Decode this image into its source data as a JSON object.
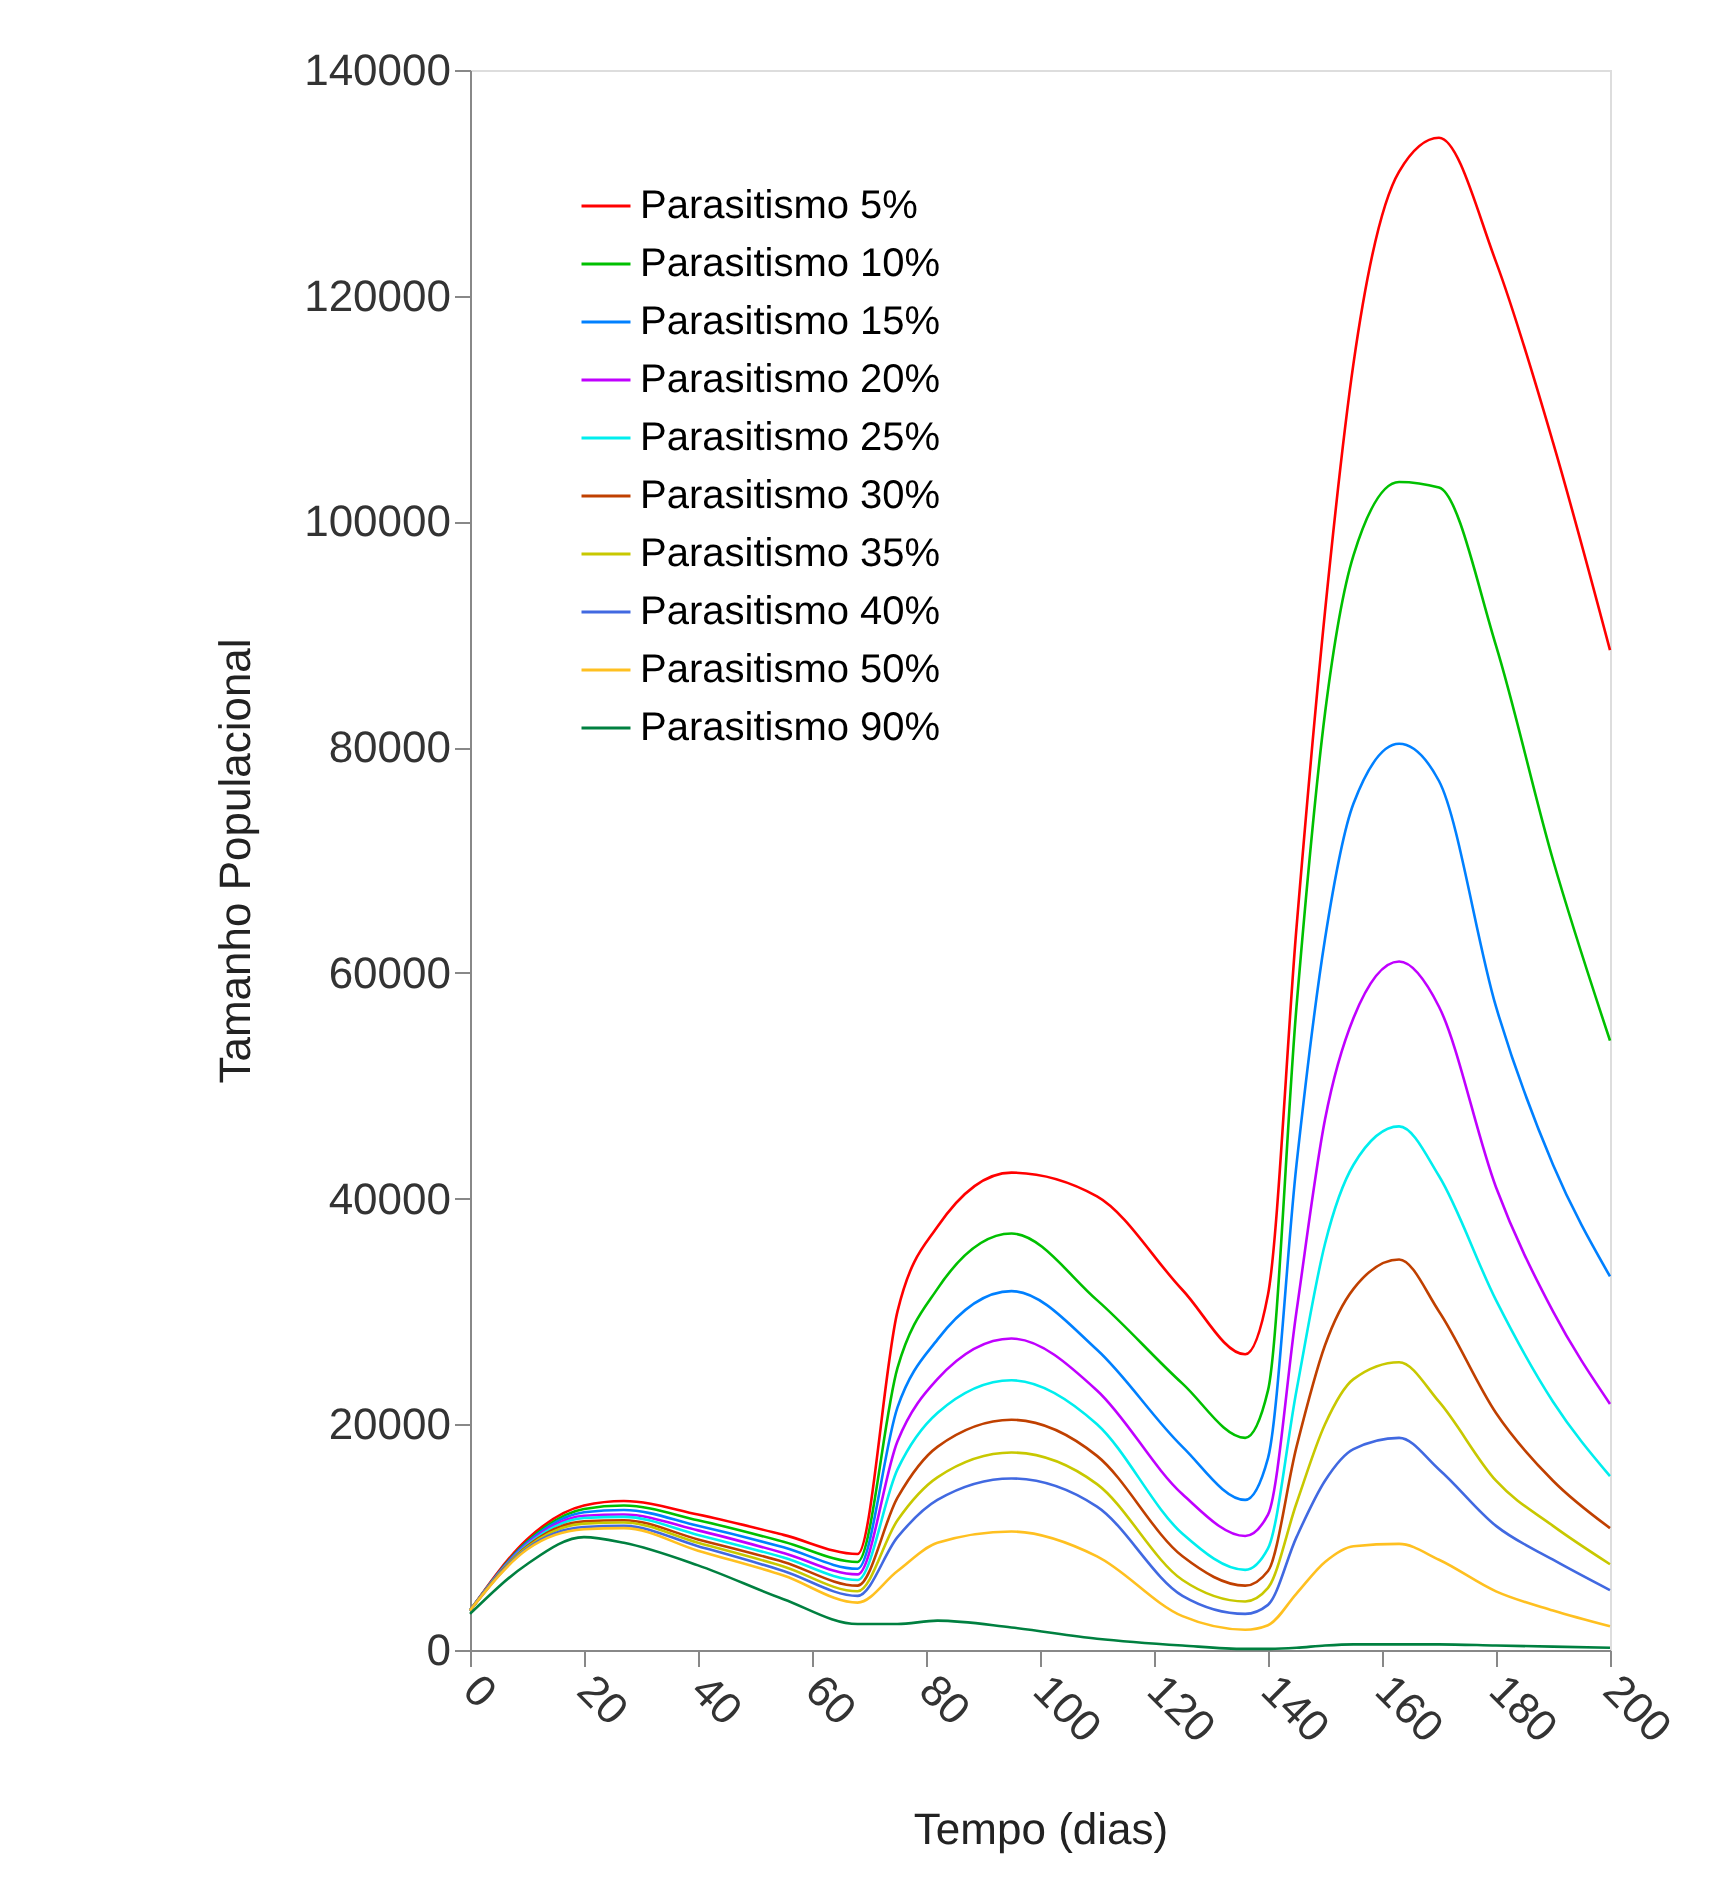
{
  "chart_data": {
    "type": "line",
    "xlabel": "Tempo (dias)",
    "ylabel": "Tamanho Populacional",
    "x": [
      0,
      10,
      20,
      27,
      40,
      55,
      68,
      75,
      82,
      95,
      110,
      125,
      136,
      140,
      145,
      150,
      155,
      163,
      170,
      180,
      190,
      200
    ],
    "xlim": [
      0,
      200
    ],
    "xticks": [
      0,
      20,
      40,
      60,
      80,
      100,
      120,
      140,
      160,
      180,
      200
    ],
    "ylim": [
      0,
      140000
    ],
    "yticks": [
      0,
      20000,
      40000,
      60000,
      80000,
      100000,
      120000,
      140000
    ],
    "grid": false,
    "legend": "top left",
    "line_style": "solid",
    "marker": "none",
    "series": [
      {
        "name": "Parasitismo 5%",
        "color": "#ff0000",
        "values": [
          3500,
          9800,
          12800,
          13200,
          12000,
          10200,
          8500,
          30000,
          37500,
          42300,
          40200,
          31900,
          26200,
          31500,
          64000,
          92000,
          114000,
          131000,
          134000,
          123000,
          107000,
          88600
        ]
      },
      {
        "name": "Parasitismo 10%",
        "color": "#00c000",
        "values": [
          3500,
          9600,
          12500,
          12800,
          11500,
          9600,
          7800,
          25000,
          32000,
          36900,
          31000,
          23600,
          18800,
          23000,
          57000,
          83000,
          97000,
          103500,
          103000,
          89000,
          70000,
          54000
        ]
      },
      {
        "name": "Parasitismo 15%",
        "color": "#0080ff",
        "values": [
          3500,
          9500,
          12200,
          12400,
          11000,
          9100,
          7200,
          21500,
          27500,
          31800,
          26600,
          18000,
          13300,
          17000,
          43000,
          63000,
          75000,
          80300,
          77000,
          57000,
          43000,
          33100
        ]
      },
      {
        "name": "Parasitismo 20%",
        "color": "#c000ff",
        "values": [
          3500,
          9400,
          11900,
          12000,
          10600,
          8600,
          6700,
          18500,
          24000,
          27600,
          23000,
          13800,
          10100,
          12000,
          30000,
          47000,
          56000,
          61000,
          57000,
          41000,
          30000,
          21800
        ]
      },
      {
        "name": "Parasitismo 25%",
        "color": "#00eeee",
        "values": [
          3500,
          9300,
          11700,
          11800,
          10200,
          8200,
          6200,
          16000,
          21000,
          23900,
          20000,
          10300,
          7100,
          9000,
          23000,
          36000,
          43000,
          46400,
          42000,
          31000,
          22000,
          15400
        ]
      },
      {
        "name": "Parasitismo 30%",
        "color": "#c04000",
        "values": [
          3500,
          9200,
          11400,
          11500,
          9800,
          7800,
          5700,
          13500,
          18000,
          20400,
          17200,
          8300,
          5700,
          7000,
          18000,
          27000,
          32000,
          34600,
          30000,
          21000,
          15000,
          10800
        ]
      },
      {
        "name": "Parasitismo 35%",
        "color": "#c8c800",
        "values": [
          3500,
          9100,
          11200,
          11300,
          9500,
          7400,
          5200,
          11500,
          15300,
          17500,
          14700,
          6200,
          4300,
          5500,
          13000,
          20000,
          24000,
          25500,
          22000,
          15000,
          11000,
          7600
        ]
      },
      {
        "name": "Parasitismo 40%",
        "color": "#4169e1",
        "values": [
          3500,
          9000,
          10900,
          11000,
          9200,
          7000,
          4800,
          10000,
          13300,
          15200,
          12700,
          4800,
          3200,
          4000,
          10000,
          15000,
          17800,
          18800,
          16000,
          11000,
          8000,
          5300
        ]
      },
      {
        "name": "Parasitismo 50%",
        "color": "#ffc020",
        "values": [
          3500,
          8900,
          10700,
          10800,
          8800,
          6600,
          4200,
          7000,
          9500,
          10500,
          8300,
          3000,
          1800,
          2200,
          5000,
          7800,
          9200,
          9400,
          8000,
          5200,
          3500,
          2100
        ]
      },
      {
        "name": "Parasitismo 90%",
        "color": "#008040",
        "values": [
          3200,
          7600,
          10000,
          9500,
          7500,
          4500,
          2300,
          2300,
          2600,
          2000,
          1000,
          400,
          100,
          100,
          200,
          400,
          500,
          500,
          500,
          400,
          300,
          200
        ]
      }
    ]
  }
}
